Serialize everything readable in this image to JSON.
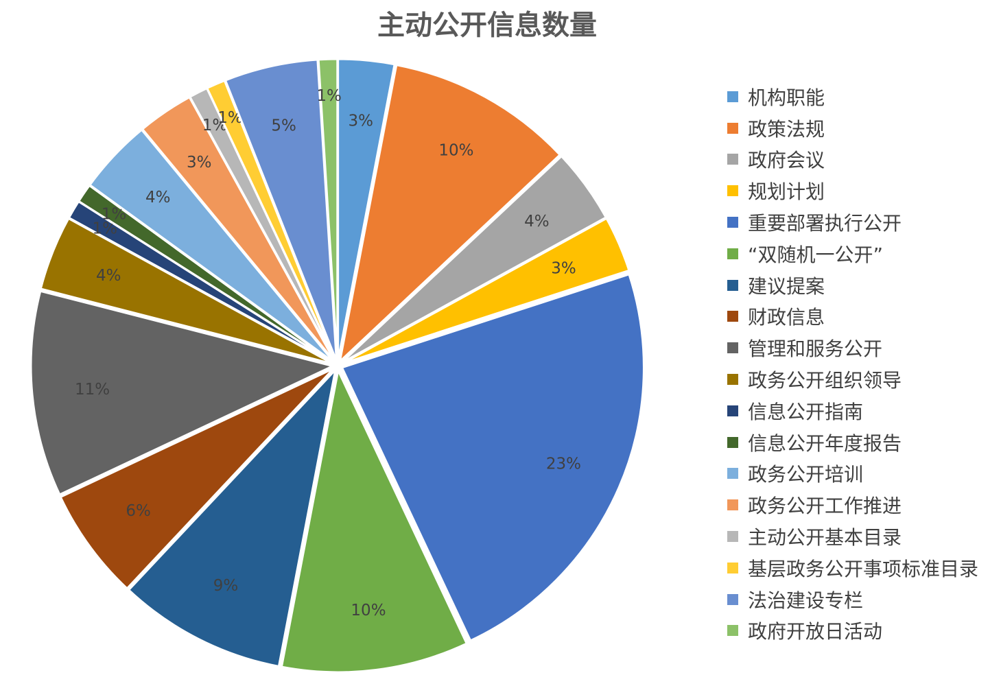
{
  "chart_data": {
    "type": "pie",
    "title": "主动公开信息数量",
    "legend_position": "right",
    "categories": [
      "机构职能",
      "政策法规",
      "政府会议",
      "规划计划",
      "重要部署执行公开",
      "“双随机一公开”",
      "建议提案",
      "财政信息",
      "管理和服务公开",
      "政务公开组织领导",
      "信息公开指南",
      "信息公开年度报告",
      "政务公开培训",
      "政务公开工作推进",
      "主动公开基本目录",
      "基层政务公开事项标准目录",
      "法治建设专栏",
      "政府开放日活动"
    ],
    "values": [
      3,
      10,
      4,
      3,
      23,
      10,
      9,
      6,
      11,
      4,
      1,
      1,
      4,
      3,
      1,
      1,
      5,
      1
    ],
    "data_labels": [
      "3%",
      "10%",
      "4%",
      "3%",
      "23%",
      "10%",
      "9%",
      "6%",
      "11%",
      "4%",
      "1%",
      "1%",
      "4%",
      "3%",
      "1%",
      "1%",
      "5%",
      "1%"
    ],
    "colors": [
      "#5B9BD5",
      "#ED7D31",
      "#A5A5A5",
      "#FFC000",
      "#4472C4",
      "#70AD47",
      "#255E91",
      "#9E480E",
      "#636363",
      "#997300",
      "#264478",
      "#43682B",
      "#7CAFDD",
      "#F1975A",
      "#B7B7B7",
      "#FFCD33",
      "#698ED0",
      "#8CC168"
    ]
  }
}
